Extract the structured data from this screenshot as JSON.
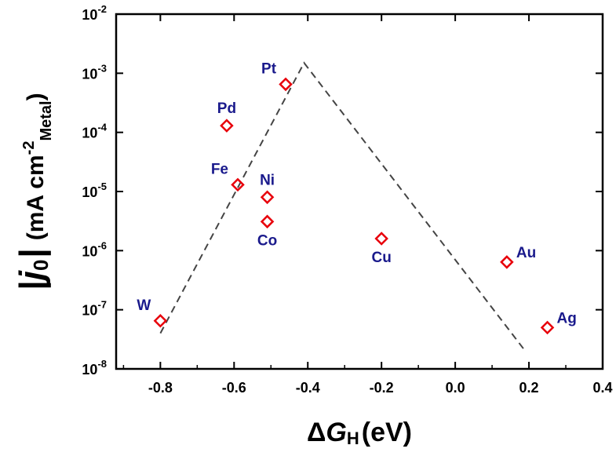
{
  "chart_data": {
    "type": "scatter",
    "title": "",
    "xlabel": {
      "delta": "Δ",
      "g": "G",
      "sub": "H",
      "unit": "(eV)"
    },
    "ylabel": {
      "pipe_open": "|",
      "j": "j",
      "sub0": "0",
      "pipe_close": "|",
      "unit_open": "(mA cm",
      "exp": "-2",
      "sub_metal": "Metal",
      "unit_close": ")"
    },
    "xlim": [
      -0.92,
      0.4
    ],
    "ylim": [
      1e-08,
      0.01
    ],
    "yscale": "log",
    "grid": false,
    "x_ticks": [
      {
        "value": -0.8,
        "label": "-0.8"
      },
      {
        "value": -0.6,
        "label": "-0.6"
      },
      {
        "value": -0.4,
        "label": "-0.4"
      },
      {
        "value": -0.2,
        "label": "-0.2"
      },
      {
        "value": 0.0,
        "label": "0.0"
      },
      {
        "value": 0.2,
        "label": "0.2"
      },
      {
        "value": 0.4,
        "label": "0.4"
      }
    ],
    "y_ticks": [
      {
        "value": 1e-08,
        "base": "10",
        "exp": "-8"
      },
      {
        "value": 1e-07,
        "base": "10",
        "exp": "-7"
      },
      {
        "value": 1e-06,
        "base": "10",
        "exp": "-6"
      },
      {
        "value": 1e-05,
        "base": "10",
        "exp": "-5"
      },
      {
        "value": 0.0001,
        "base": "10",
        "exp": "-4"
      },
      {
        "value": 0.001,
        "base": "10",
        "exp": "-3"
      },
      {
        "value": 0.01,
        "base": "10",
        "exp": "-2"
      }
    ],
    "points": [
      {
        "label": "W",
        "x": -0.8,
        "y": 6.5e-08,
        "label_pos": "above-left"
      },
      {
        "label": "Pd",
        "x": -0.62,
        "y": 0.00013,
        "label_pos": "above"
      },
      {
        "label": "Fe",
        "x": -0.59,
        "y": 1.3e-05,
        "label_pos": "above-left"
      },
      {
        "label": "Pt",
        "x": -0.46,
        "y": 0.00065,
        "label_pos": "above-left"
      },
      {
        "label": "Ni",
        "x": -0.51,
        "y": 8e-06,
        "label_pos": "above"
      },
      {
        "label": "Co",
        "x": -0.51,
        "y": 3.1e-06,
        "label_pos": "below"
      },
      {
        "label": "Cu",
        "x": -0.2,
        "y": 1.6e-06,
        "label_pos": "below"
      },
      {
        "label": "Au",
        "x": 0.14,
        "y": 6.4e-07,
        "label_pos": "above-right"
      },
      {
        "label": "Ag",
        "x": 0.25,
        "y": 5e-08,
        "label_pos": "above-right"
      }
    ],
    "trend_line": [
      {
        "x": -0.8,
        "y": 4e-08
      },
      {
        "x": -0.41,
        "y": 0.0015
      },
      {
        "x": 0.19,
        "y": 2e-08
      }
    ],
    "colors": {
      "marker": "#e8000b",
      "point_label": "#1a1a8c",
      "trend_line": "#444444",
      "axis": "#000000"
    }
  }
}
